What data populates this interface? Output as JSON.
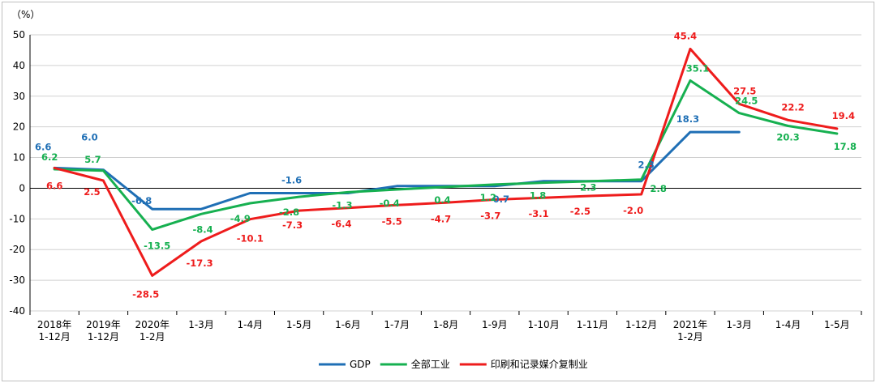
{
  "chart_data": {
    "type": "line",
    "unit_label": "（%）",
    "ylim": [
      -40,
      50
    ],
    "yticks": [
      50,
      40,
      30,
      20,
      10,
      0,
      -10,
      -20,
      -30,
      -40
    ],
    "grid": true,
    "legend_position": "bottom",
    "categories": [
      [
        "2018年",
        "1-12月"
      ],
      [
        "2019年",
        "1-12月"
      ],
      [
        "2020年",
        "1-2月"
      ],
      [
        "1-3月"
      ],
      [
        "1-4月"
      ],
      [
        "1-5月"
      ],
      [
        "1-6月"
      ],
      [
        "1-7月"
      ],
      [
        "1-8月"
      ],
      [
        "1-9月"
      ],
      [
        "1-10月"
      ],
      [
        "1-11月"
      ],
      [
        "1-12月"
      ],
      [
        "2021年",
        "1-2月"
      ],
      [
        "1-3月"
      ],
      [
        "1-4月"
      ],
      [
        "1-5月"
      ]
    ],
    "series": [
      {
        "name": "GDP",
        "color": "#1f6fb5",
        "values": [
          6.6,
          6.0,
          -6.8,
          -6.8,
          -1.6,
          -1.6,
          -1.6,
          0.7,
          0.7,
          0.7,
          2.3,
          2.3,
          2.3,
          18.3,
          18.3,
          null,
          null
        ],
        "labels": [
          "6.6",
          "6.0",
          "-6.8",
          "",
          "",
          "-1.6",
          "",
          "",
          "",
          "0.7",
          "",
          "",
          "2.3",
          "18.3",
          "",
          "",
          ""
        ]
      },
      {
        "name": "全部工业",
        "color": "#16b050",
        "values": [
          6.2,
          5.7,
          -13.5,
          -8.4,
          -4.9,
          -2.8,
          -1.3,
          -0.4,
          0.4,
          1.2,
          1.8,
          2.3,
          2.8,
          35.1,
          24.5,
          20.3,
          17.8
        ],
        "labels": [
          "6.2",
          "5.7",
          "-13.5",
          "-8.4",
          "-4.9",
          "-2.8",
          "-1.3",
          "-0.4",
          "0.4",
          "1.2",
          "1.8",
          "2.3",
          "2.8",
          "35.1",
          "24.5",
          "20.3",
          "17.8"
        ]
      },
      {
        "name": "印刷和记录媒介复制业",
        "color": "#ee1c1c",
        "values": [
          6.6,
          2.5,
          -28.5,
          -17.3,
          -10.1,
          -7.3,
          -6.4,
          -5.5,
          -4.7,
          -3.7,
          -3.1,
          -2.5,
          -2.0,
          45.4,
          27.5,
          22.2,
          19.4
        ],
        "labels": [
          "6.6",
          "2.5",
          "-28.5",
          "-17.3",
          "-10.1",
          "-7.3",
          "-6.4",
          "-5.5",
          "-4.7",
          "-3.7",
          "-3.1",
          "-2.5",
          "-2.0",
          "45.4",
          "27.5",
          "22.2",
          "19.4"
        ]
      }
    ]
  }
}
